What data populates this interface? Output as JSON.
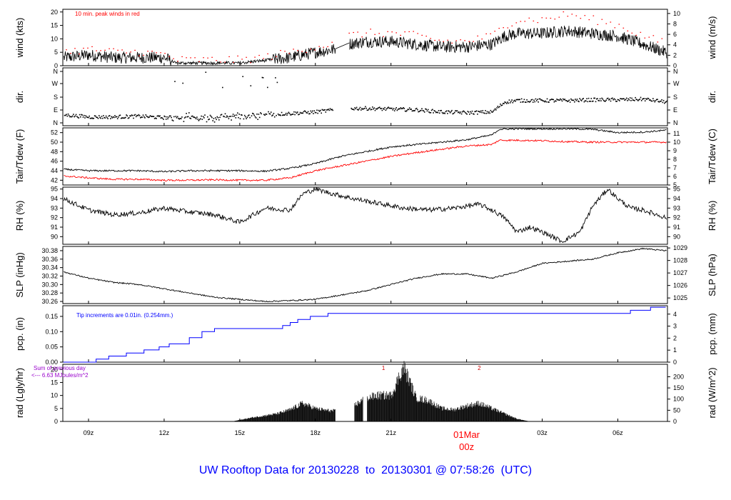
{
  "title": "UW Rooftop Data for 20130228  to  20130301 @ 07:58:26  (UTC)",
  "colors": {
    "primary": "#000000",
    "peak": "#ff0000",
    "dewpoint": "#ff0000",
    "precip": "#0000ff",
    "title": "#0000ff",
    "note": "#9900cc"
  },
  "chart_data": [
    {
      "type": "line",
      "id": "wind",
      "ylabel": "wind (kts)",
      "ylabel_right": "wind (m/s)",
      "ylim": [
        0,
        21
      ],
      "yticks": [
        0,
        5,
        10,
        15,
        20
      ],
      "yticks_right": [
        0,
        2,
        4,
        6,
        8,
        10
      ],
      "annotation": "10 min. peak winds in red",
      "x_hours": [
        8.0,
        9.0,
        10.0,
        11.0,
        12.0,
        12.5,
        13.0,
        14.0,
        15.0,
        16.0,
        17.0,
        18.0,
        18.7,
        19.3,
        20.0,
        21.0,
        22.0,
        23.0,
        24.0,
        25.0,
        25.5,
        26.0,
        27.0,
        28.0,
        29.0,
        30.0,
        31.0,
        31.9
      ],
      "series": [
        {
          "name": "wind",
          "values": [
            3,
            4,
            3,
            3,
            3,
            1,
            1,
            1,
            1,
            2,
            3,
            5,
            6,
            8,
            9,
            9,
            8,
            7,
            7,
            8,
            11,
            12,
            12,
            13,
            12,
            11,
            8,
            5
          ]
        },
        {
          "name": "peak",
          "values": [
            5,
            6,
            5,
            5,
            4,
            2,
            2,
            2,
            2,
            3,
            5,
            7,
            8,
            11,
            12,
            12,
            11,
            9,
            9,
            11,
            15,
            17,
            17,
            19,
            17,
            15,
            11,
            8
          ]
        }
      ]
    },
    {
      "type": "scatter",
      "id": "dir",
      "ylabel": "dir.",
      "ylabel_right": "dir.",
      "yticks": [
        "N",
        "E",
        "S",
        "W",
        "N"
      ],
      "x_hours": [
        8.0,
        9.0,
        10.0,
        11.0,
        12.0,
        13.0,
        14.0,
        15.0,
        16.0,
        17.0,
        18.0,
        19.0,
        19.5,
        20.0,
        21.0,
        22.0,
        23.0,
        24.0,
        25.0,
        25.5,
        26.0,
        27.0,
        28.0,
        29.0,
        30.0,
        31.0,
        31.9
      ],
      "values": [
        60,
        45,
        45,
        50,
        40,
        45,
        40,
        50,
        60,
        70,
        80,
        100,
        105,
        105,
        100,
        95,
        80,
        75,
        80,
        150,
        160,
        160,
        160,
        165,
        165,
        170,
        150
      ]
    },
    {
      "type": "line",
      "id": "temp",
      "ylabel": "Tair/Tdew (F)",
      "ylabel_right": "Tair/Tdew (C)",
      "ylim": [
        41,
        53
      ],
      "yticks": [
        42,
        44,
        46,
        48,
        50,
        52
      ],
      "yticks_right": [
        5,
        6,
        7,
        8,
        9,
        10,
        11
      ],
      "x_hours": [
        8.0,
        9.0,
        10.0,
        11.0,
        12.0,
        13.0,
        14.0,
        15.0,
        16.0,
        17.0,
        18.0,
        19.0,
        20.0,
        21.0,
        22.0,
        23.0,
        24.0,
        25.0,
        25.3,
        26.0,
        27.0,
        28.0,
        29.0,
        30.0,
        31.0,
        31.9
      ],
      "series": [
        {
          "name": "Tair",
          "values": [
            44.3,
            44.0,
            44.0,
            44.0,
            43.8,
            44.0,
            44.0,
            44.0,
            43.9,
            44.5,
            45.5,
            47.0,
            48.0,
            49.0,
            49.5,
            50.0,
            50.5,
            51.5,
            52.7,
            52.8,
            52.8,
            52.8,
            52.7,
            52.0,
            52.1,
            52.5
          ]
        },
        {
          "name": "Tdew",
          "values": [
            42.9,
            42.5,
            42.2,
            42.2,
            42.0,
            42.0,
            42.1,
            42.0,
            42.0,
            42.5,
            44.0,
            45.0,
            46.0,
            47.0,
            47.8,
            48.5,
            49.2,
            49.5,
            50.4,
            50.4,
            50.3,
            50.1,
            50.0,
            50.0,
            50.0,
            50.0
          ]
        }
      ]
    },
    {
      "type": "line",
      "id": "rh",
      "ylabel": "RH (%)",
      "ylabel_right": "RH (%)",
      "ylim": [
        89.2,
        95.2
      ],
      "yticks": [
        90,
        91,
        92,
        93,
        94,
        95
      ],
      "yticks_right": [
        90,
        91,
        92,
        93,
        94,
        95
      ],
      "x_hours": [
        8.0,
        9.0,
        10.0,
        11.0,
        12.0,
        13.0,
        14.0,
        15.0,
        16.0,
        17.0,
        17.5,
        18.0,
        18.7,
        19.5,
        20.5,
        21.5,
        22.5,
        23.5,
        24.5,
        25.0,
        25.5,
        26.0,
        26.5,
        27.0,
        27.8,
        28.5,
        29.0,
        29.6,
        30.0,
        30.5,
        31.0,
        31.9
      ],
      "values": [
        94.0,
        92.8,
        92.3,
        92.5,
        93.0,
        92.6,
        92.3,
        91.5,
        93.0,
        92.8,
        94.5,
        95.0,
        94.5,
        94.0,
        93.5,
        93.0,
        92.8,
        93.0,
        93.4,
        92.8,
        92.0,
        90.5,
        91.0,
        90.5,
        89.5,
        90.5,
        93.2,
        95.0,
        94.0,
        93.0,
        92.8,
        92.0
      ]
    },
    {
      "type": "line",
      "id": "slp",
      "ylabel": "SLP (inHg)",
      "ylabel_right": "SLP (hPa)",
      "ylim": [
        30.255,
        30.39
      ],
      "yticks": [
        30.26,
        30.28,
        30.3,
        30.32,
        30.34,
        30.36,
        30.38
      ],
      "yticks_right": [
        1025,
        1026,
        1027,
        1028,
        1029
      ],
      "x_hours": [
        8.0,
        9.0,
        10.0,
        11.0,
        12.0,
        13.0,
        14.0,
        15.0,
        16.0,
        17.0,
        18.0,
        19.0,
        20.0,
        21.0,
        22.0,
        23.0,
        24.0,
        25.0,
        26.0,
        27.0,
        28.0,
        29.0,
        30.0,
        31.0,
        31.9
      ],
      "values": [
        30.33,
        30.315,
        30.305,
        30.3,
        30.29,
        30.28,
        30.27,
        30.265,
        30.26,
        30.262,
        30.265,
        30.275,
        30.285,
        30.3,
        30.315,
        30.325,
        30.325,
        30.315,
        30.33,
        30.35,
        30.355,
        30.36,
        30.375,
        30.385,
        30.38
      ]
    },
    {
      "type": "line",
      "id": "pcp",
      "ylabel": "pcp. (in)",
      "ylabel_right": "pcp. (mm)",
      "ylim": [
        0,
        0.185
      ],
      "yticks": [
        0.0,
        0.05,
        0.1,
        0.15
      ],
      "yticks_right": [
        0,
        1,
        2,
        3,
        4
      ],
      "annotation": "Tip increments are 0.01in. (0.254mm.)",
      "x_hours": [
        8.0,
        9.3,
        9.8,
        10.5,
        11.2,
        11.8,
        12.2,
        13.0,
        13.5,
        14.0,
        15.0,
        16.0,
        16.7,
        17.0,
        17.3,
        17.8,
        18.5,
        19.0,
        22.0,
        25.0,
        28.0,
        30.5,
        31.3,
        31.9
      ],
      "values": [
        0.0,
        0.01,
        0.02,
        0.03,
        0.04,
        0.05,
        0.06,
        0.08,
        0.1,
        0.11,
        0.11,
        0.11,
        0.12,
        0.13,
        0.14,
        0.15,
        0.16,
        0.16,
        0.16,
        0.16,
        0.16,
        0.17,
        0.18,
        0.18
      ]
    },
    {
      "type": "area",
      "id": "rad",
      "ylabel": "rad (Lgly/hr)",
      "ylabel_right": "rad (W/m^2)",
      "ylim": [
        0,
        22
      ],
      "yticks": [
        0,
        5,
        10,
        15,
        20
      ],
      "yticks_right": [
        0,
        50,
        100,
        150,
        200
      ],
      "annotation_lines": [
        "Sum of previous day",
        "<--- 6.63 MJoules/m^2"
      ],
      "markers": [
        {
          "label": "1",
          "x_hour": 20.7
        },
        {
          "label": "2",
          "x_hour": 24.5
        }
      ],
      "x_hours": [
        8.0,
        14.7,
        15.5,
        16.5,
        17.0,
        17.5,
        18.0,
        18.5,
        18.8,
        19.6,
        20.0,
        20.5,
        21.0,
        21.5,
        21.8,
        22.0,
        22.5,
        23.0,
        23.5,
        24.0,
        24.5,
        25.0,
        25.5,
        26.0,
        26.5,
        32.0
      ],
      "values": [
        0,
        0,
        1.5,
        3.0,
        4.5,
        7.0,
        5.0,
        4.2,
        4.0,
        6.5,
        9.0,
        10.0,
        10.0,
        21.0,
        14.0,
        9.0,
        8.0,
        5.0,
        4.5,
        6.0,
        7.0,
        5.0,
        3.0,
        1.0,
        0,
        0
      ]
    }
  ],
  "x_axis": {
    "tick_labels": [
      "09z",
      "12z",
      "15z",
      "18z",
      "21z",
      "03z",
      "06z"
    ],
    "tick_hours": [
      9,
      12,
      15,
      18,
      21,
      27,
      30
    ],
    "date_label": "01Mar",
    "date_sublabel": "00z",
    "date_hour": 24
  }
}
